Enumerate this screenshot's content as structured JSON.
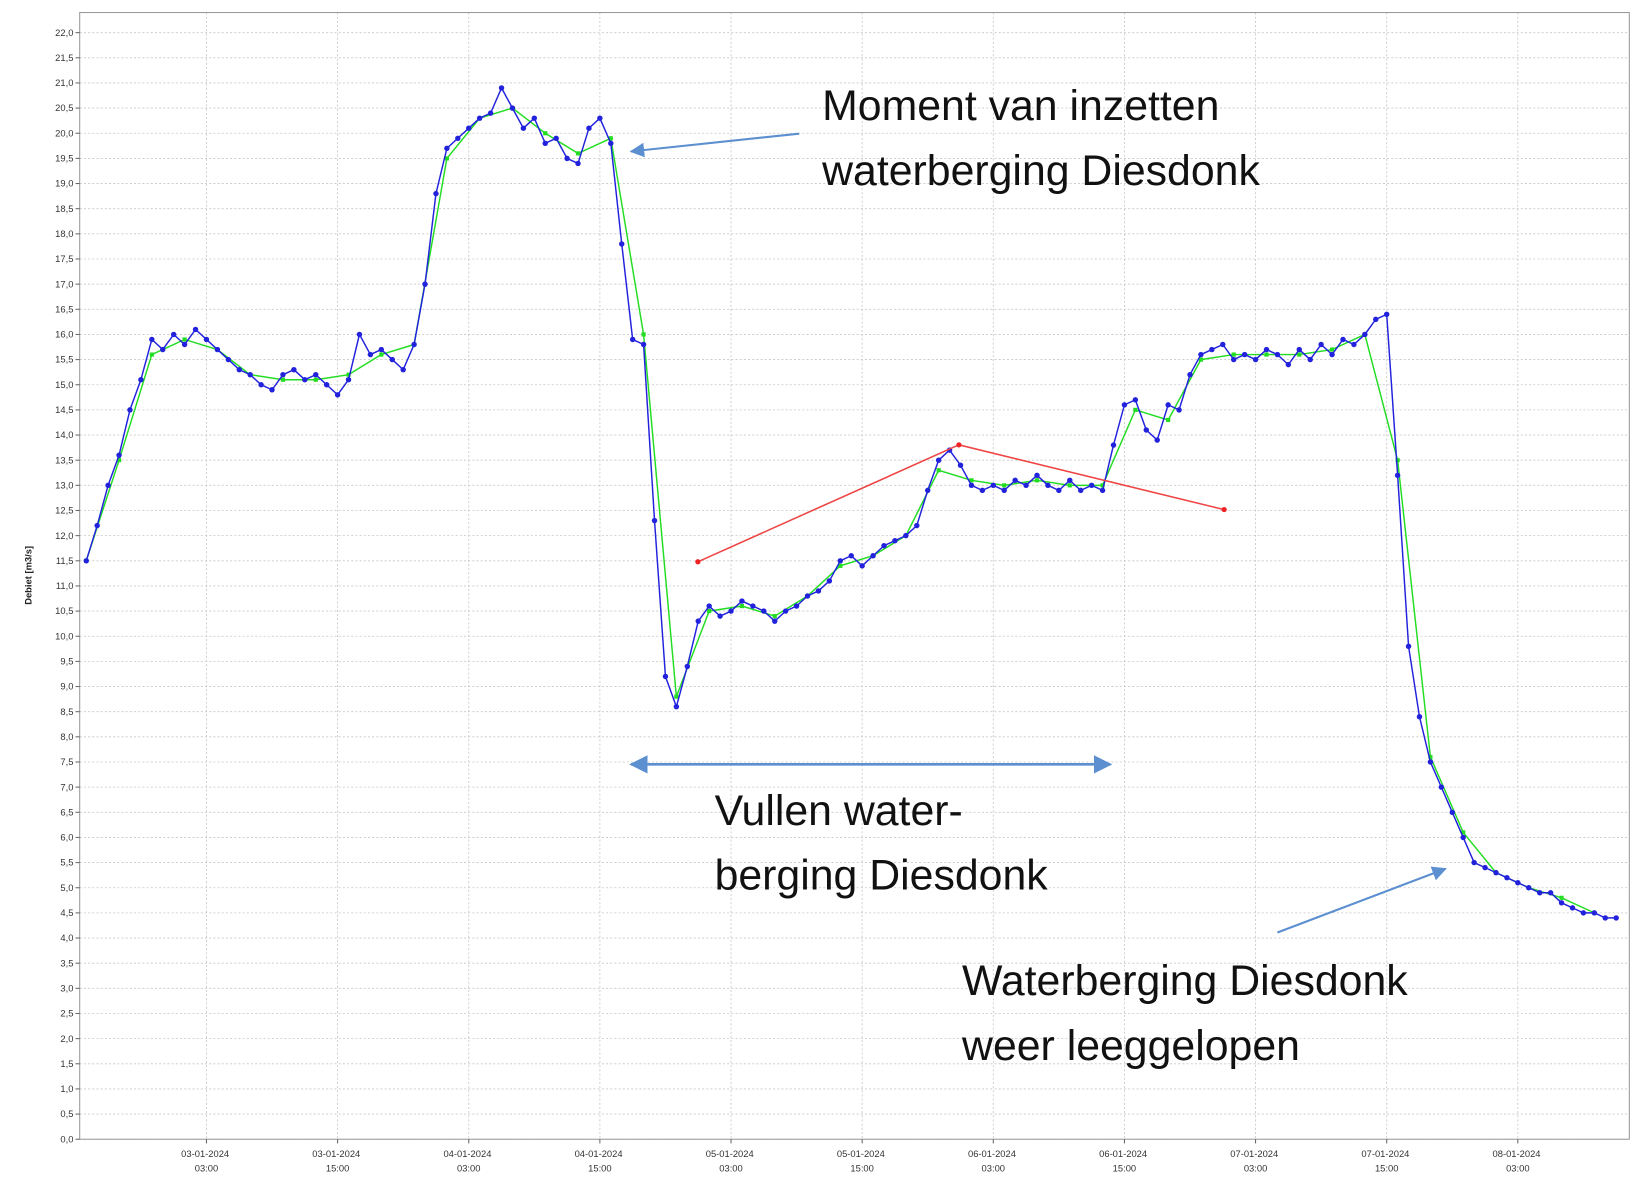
{
  "chart_data": {
    "type": "line",
    "y_label": "Debiet [m3/s]",
    "xlim": [
      "02-01-2024 15:24",
      "08-01-2024 13:12"
    ],
    "xticks": [
      "03-01-2024 03:00",
      "03-01-2024 15:00",
      "04-01-2024 03:00",
      "04-01-2024 15:00",
      "05-01-2024 03:00",
      "05-01-2024 15:00",
      "06-01-2024 03:00",
      "06-01-2024 15:00",
      "07-01-2024 03:00",
      "07-01-2024 15:00",
      "08-01-2024 03:00"
    ],
    "ylim": [
      0,
      22.4
    ],
    "yticks": [
      {
        "value": 0,
        "label": "0,0"
      },
      {
        "value": 0.5,
        "label": "0,5"
      },
      {
        "value": 1,
        "label": "1,0"
      },
      {
        "value": 1.5,
        "label": "1,5"
      },
      {
        "value": 2,
        "label": "2,0"
      },
      {
        "value": 2.5,
        "label": "2,5"
      },
      {
        "value": 3,
        "label": "3,0"
      },
      {
        "value": 3.5,
        "label": "3,5"
      },
      {
        "value": 4,
        "label": "4,0"
      },
      {
        "value": 4.5,
        "label": "4,5"
      },
      {
        "value": 5,
        "label": "5,0"
      },
      {
        "value": 5.5,
        "label": "5,5"
      },
      {
        "value": 6,
        "label": "6,0"
      },
      {
        "value": 6.5,
        "label": "6,5"
      },
      {
        "value": 7,
        "label": "7,0"
      },
      {
        "value": 7.5,
        "label": "7,5"
      },
      {
        "value": 8,
        "label": "8,0"
      },
      {
        "value": 8.5,
        "label": "8,5"
      },
      {
        "value": 9,
        "label": "9,0"
      },
      {
        "value": 9.5,
        "label": "9,5"
      },
      {
        "value": 10,
        "label": "10,0"
      },
      {
        "value": 10.5,
        "label": "10,5"
      },
      {
        "value": 11,
        "label": "11,0"
      },
      {
        "value": 11.5,
        "label": "11,5"
      },
      {
        "value": 12,
        "label": "12,0"
      },
      {
        "value": 12.5,
        "label": "12,5"
      },
      {
        "value": 13,
        "label": "13,0"
      },
      {
        "value": 13.5,
        "label": "13,5"
      },
      {
        "value": 14,
        "label": "14,0"
      },
      {
        "value": 14.5,
        "label": "14,5"
      },
      {
        "value": 15,
        "label": "15,0"
      },
      {
        "value": 15.5,
        "label": "15,5"
      },
      {
        "value": 16,
        "label": "16,0"
      },
      {
        "value": 16.5,
        "label": "16,5"
      },
      {
        "value": 17,
        "label": "17,0"
      },
      {
        "value": 17.5,
        "label": "17,5"
      },
      {
        "value": 18,
        "label": "18,0"
      },
      {
        "value": 18.5,
        "label": "18,5"
      },
      {
        "value": 19,
        "label": "19,0"
      },
      {
        "value": 19.5,
        "label": "19,5"
      },
      {
        "value": 20,
        "label": "20,0"
      },
      {
        "value": 20.5,
        "label": "20,5"
      },
      {
        "value": 21,
        "label": "21,0"
      },
      {
        "value": 21.5,
        "label": "21,5"
      },
      {
        "value": 22,
        "label": "22,0"
      }
    ],
    "grid": true,
    "series": [
      {
        "color": "#22dd22",
        "marker": "square",
        "x": [
          "02-01-2024 16:00",
          "02-01-2024 19:00",
          "02-01-2024 22:00",
          "03-01-2024 01:00",
          "03-01-2024 04:00",
          "03-01-2024 07:00",
          "03-01-2024 10:00",
          "03-01-2024 13:00",
          "03-01-2024 16:00",
          "03-01-2024 19:00",
          "03-01-2024 22:00",
          "04-01-2024 01:00",
          "04-01-2024 04:00",
          "04-01-2024 07:00",
          "04-01-2024 10:00",
          "04-01-2024 13:00",
          "04-01-2024 16:00",
          "04-01-2024 19:00",
          "04-01-2024 22:00",
          "05-01-2024 01:00",
          "05-01-2024 04:00",
          "05-01-2024 07:00",
          "05-01-2024 10:00",
          "05-01-2024 13:00",
          "05-01-2024 16:00",
          "05-01-2024 19:00",
          "05-01-2024 22:00",
          "06-01-2024 01:00",
          "06-01-2024 04:00",
          "06-01-2024 07:00",
          "06-01-2024 10:00",
          "06-01-2024 13:00",
          "06-01-2024 16:00",
          "06-01-2024 19:00",
          "06-01-2024 22:00",
          "07-01-2024 01:00",
          "07-01-2024 04:00",
          "07-01-2024 07:00",
          "07-01-2024 10:00",
          "07-01-2024 13:00",
          "07-01-2024 16:00",
          "07-01-2024 19:00",
          "07-01-2024 22:00",
          "08-01-2024 01:00",
          "08-01-2024 04:00",
          "08-01-2024 07:00",
          "08-01-2024 10:00"
        ],
        "values": [
          11.5,
          13.5,
          15.6,
          15.9,
          15.7,
          15.2,
          15.1,
          15.1,
          15.2,
          15.6,
          15.8,
          19.5,
          20.3,
          20.5,
          20.0,
          19.6,
          19.9,
          16.0,
          8.8,
          10.5,
          10.6,
          10.4,
          10.8,
          11.4,
          11.6,
          12.0,
          13.3,
          13.1,
          13.0,
          13.1,
          13.0,
          13.0,
          14.5,
          14.3,
          15.5,
          15.6,
          15.6,
          15.6,
          15.7,
          16.0,
          13.5,
          7.6,
          6.1,
          5.3,
          5.0,
          4.8,
          4.5
        ]
      },
      {
        "color": "#2222dd",
        "marker": "circle",
        "x": [
          "02-01-2024 16:00",
          "02-01-2024 17:00",
          "02-01-2024 18:00",
          "02-01-2024 19:00",
          "02-01-2024 20:00",
          "02-01-2024 21:00",
          "02-01-2024 22:00",
          "02-01-2024 23:00",
          "03-01-2024 00:00",
          "03-01-2024 01:00",
          "03-01-2024 02:00",
          "03-01-2024 03:00",
          "03-01-2024 04:00",
          "03-01-2024 05:00",
          "03-01-2024 06:00",
          "03-01-2024 07:00",
          "03-01-2024 08:00",
          "03-01-2024 09:00",
          "03-01-2024 10:00",
          "03-01-2024 11:00",
          "03-01-2024 12:00",
          "03-01-2024 13:00",
          "03-01-2024 14:00",
          "03-01-2024 15:00",
          "03-01-2024 16:00",
          "03-01-2024 17:00",
          "03-01-2024 18:00",
          "03-01-2024 19:00",
          "03-01-2024 20:00",
          "03-01-2024 21:00",
          "03-01-2024 22:00",
          "03-01-2024 23:00",
          "04-01-2024 00:00",
          "04-01-2024 01:00",
          "04-01-2024 02:00",
          "04-01-2024 03:00",
          "04-01-2024 04:00",
          "04-01-2024 05:00",
          "04-01-2024 06:00",
          "04-01-2024 07:00",
          "04-01-2024 08:00",
          "04-01-2024 09:00",
          "04-01-2024 10:00",
          "04-01-2024 11:00",
          "04-01-2024 12:00",
          "04-01-2024 13:00",
          "04-01-2024 14:00",
          "04-01-2024 15:00",
          "04-01-2024 16:00",
          "04-01-2024 17:00",
          "04-01-2024 18:00",
          "04-01-2024 19:00",
          "04-01-2024 20:00",
          "04-01-2024 21:00",
          "04-01-2024 22:00",
          "04-01-2024 23:00",
          "05-01-2024 00:00",
          "05-01-2024 01:00",
          "05-01-2024 02:00",
          "05-01-2024 03:00",
          "05-01-2024 04:00",
          "05-01-2024 05:00",
          "05-01-2024 06:00",
          "05-01-2024 07:00",
          "05-01-2024 08:00",
          "05-01-2024 09:00",
          "05-01-2024 10:00",
          "05-01-2024 11:00",
          "05-01-2024 12:00",
          "05-01-2024 13:00",
          "05-01-2024 14:00",
          "05-01-2024 15:00",
          "05-01-2024 16:00",
          "05-01-2024 17:00",
          "05-01-2024 18:00",
          "05-01-2024 19:00",
          "05-01-2024 20:00",
          "05-01-2024 21:00",
          "05-01-2024 22:00",
          "05-01-2024 23:00",
          "06-01-2024 00:00",
          "06-01-2024 01:00",
          "06-01-2024 02:00",
          "06-01-2024 03:00",
          "06-01-2024 04:00",
          "06-01-2024 05:00",
          "06-01-2024 06:00",
          "06-01-2024 07:00",
          "06-01-2024 08:00",
          "06-01-2024 09:00",
          "06-01-2024 10:00",
          "06-01-2024 11:00",
          "06-01-2024 12:00",
          "06-01-2024 13:00",
          "06-01-2024 14:00",
          "06-01-2024 15:00",
          "06-01-2024 16:00",
          "06-01-2024 17:00",
          "06-01-2024 18:00",
          "06-01-2024 19:00",
          "06-01-2024 20:00",
          "06-01-2024 21:00",
          "06-01-2024 22:00",
          "06-01-2024 23:00",
          "07-01-2024 00:00",
          "07-01-2024 01:00",
          "07-01-2024 02:00",
          "07-01-2024 03:00",
          "07-01-2024 04:00",
          "07-01-2024 05:00",
          "07-01-2024 06:00",
          "07-01-2024 07:00",
          "07-01-2024 08:00",
          "07-01-2024 09:00",
          "07-01-2024 10:00",
          "07-01-2024 11:00",
          "07-01-2024 12:00",
          "07-01-2024 13:00",
          "07-01-2024 14:00",
          "07-01-2024 15:00",
          "07-01-2024 16:00",
          "07-01-2024 17:00",
          "07-01-2024 18:00",
          "07-01-2024 19:00",
          "07-01-2024 20:00",
          "07-01-2024 21:00",
          "07-01-2024 22:00",
          "07-01-2024 23:00",
          "08-01-2024 00:00",
          "08-01-2024 01:00",
          "08-01-2024 02:00",
          "08-01-2024 03:00",
          "08-01-2024 04:00",
          "08-01-2024 05:00",
          "08-01-2024 06:00",
          "08-01-2024 07:00",
          "08-01-2024 08:00",
          "08-01-2024 09:00",
          "08-01-2024 10:00",
          "08-01-2024 11:00",
          "08-01-2024 12:00"
        ],
        "values": [
          11.5,
          12.2,
          13.0,
          13.6,
          14.5,
          15.1,
          15.9,
          15.7,
          16.0,
          15.8,
          16.1,
          15.9,
          15.7,
          15.5,
          15.3,
          15.2,
          15.0,
          14.9,
          15.2,
          15.3,
          15.1,
          15.2,
          15.0,
          14.8,
          15.1,
          16.0,
          15.6,
          15.7,
          15.5,
          15.3,
          15.8,
          17.0,
          18.8,
          19.7,
          19.9,
          20.1,
          20.3,
          20.4,
          20.9,
          20.5,
          20.1,
          20.3,
          19.8,
          19.9,
          19.5,
          19.4,
          20.1,
          20.3,
          19.8,
          17.8,
          15.9,
          15.8,
          12.3,
          9.2,
          8.6,
          9.4,
          10.3,
          10.6,
          10.4,
          10.5,
          10.7,
          10.6,
          10.5,
          10.3,
          10.5,
          10.6,
          10.8,
          10.9,
          11.1,
          11.5,
          11.6,
          11.4,
          11.6,
          11.8,
          11.9,
          12.0,
          12.2,
          12.9,
          13.5,
          13.7,
          13.4,
          13.0,
          12.9,
          13.0,
          12.9,
          13.1,
          13.0,
          13.2,
          13.0,
          12.9,
          13.1,
          12.9,
          13.0,
          12.9,
          13.8,
          14.6,
          14.7,
          14.1,
          13.9,
          14.6,
          14.5,
          15.2,
          15.6,
          15.7,
          15.8,
          15.5,
          15.6,
          15.5,
          15.7,
          15.6,
          15.4,
          15.7,
          15.5,
          15.8,
          15.6,
          15.9,
          15.8,
          16.0,
          16.3,
          16.4,
          13.2,
          9.8,
          8.4,
          7.5,
          7.0,
          6.5,
          6.0,
          5.5,
          5.4,
          5.3,
          5.2,
          5.1,
          5.0,
          4.9,
          4.9,
          4.7,
          4.6,
          4.5,
          4.5,
          4.4,
          4.4
        ]
      }
    ],
    "annotations": [
      {
        "lines": [
          "Moment van inzetten",
          "waterberging Diesdonk"
        ]
      },
      {
        "lines": [
          "Vullen water-",
          "berging Diesdonk"
        ]
      },
      {
        "lines": [
          "Waterberging Diesdonk",
          "weer leeggelopen"
        ]
      }
    ]
  }
}
